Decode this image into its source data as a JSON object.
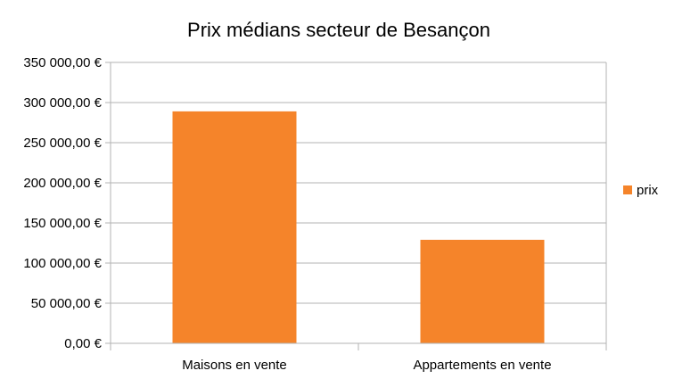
{
  "chart_data": {
    "type": "bar",
    "title": "Prix médians secteur de Besançon",
    "categories": [
      "Maisons en vente",
      "Appartements en vente"
    ],
    "series": [
      {
        "name": "prix",
        "values": [
          289000,
          129000
        ],
        "color": "#f5842a"
      }
    ],
    "ylim": [
      0,
      350000
    ],
    "y_ticks": [
      0,
      50000,
      100000,
      150000,
      200000,
      250000,
      300000,
      350000
    ],
    "y_tick_labels": [
      "0,00 €",
      "50 000,00 €",
      "100 000,00 €",
      "150 000,00 €",
      "200 000,00 €",
      "250 000,00 €",
      "300 000,00 €",
      "350 000,00 €"
    ],
    "grid": true,
    "legend_position": "right",
    "colors": {
      "grid": "#b3b3b3",
      "axis": "#b3b3b3",
      "bar": "#f5842a"
    }
  }
}
